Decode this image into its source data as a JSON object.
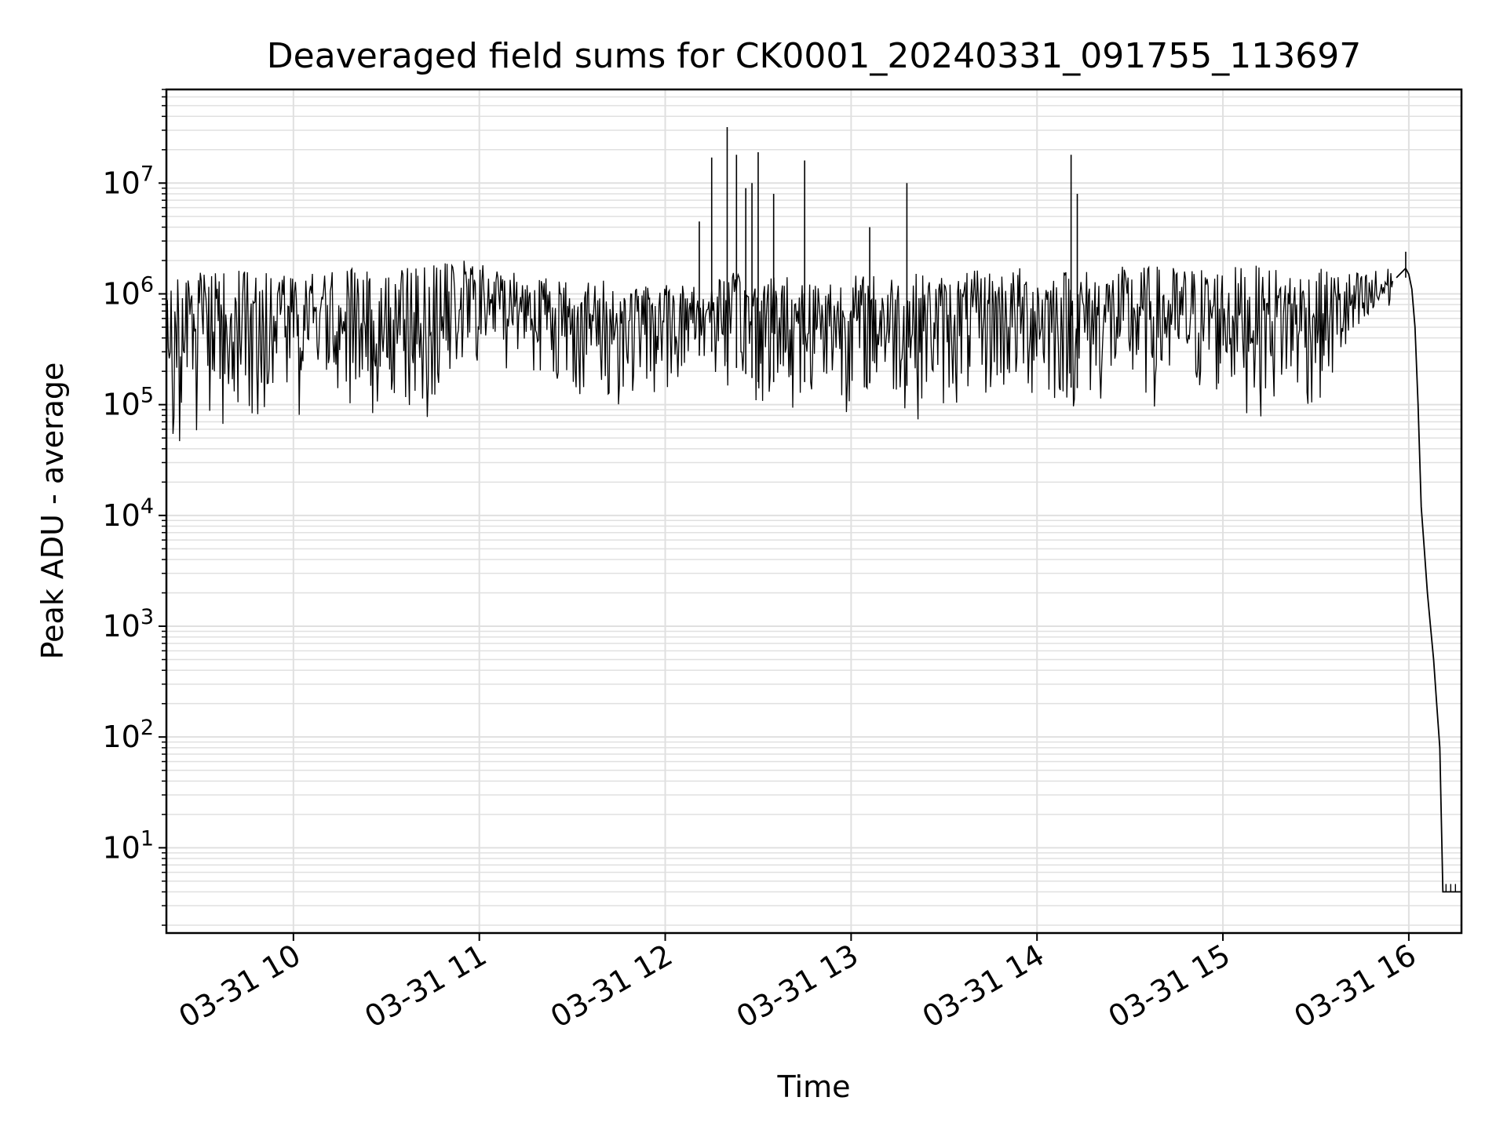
{
  "chart_data": {
    "type": "line",
    "title": "Deaveraged field sums for CK0001_20240331_091755_113697",
    "xlabel": "Time",
    "ylabel": "Peak ADU - average",
    "yscale": "log",
    "grid": true,
    "line_color": "#000000",
    "grid_color": "#e0e0e0",
    "x_range": [
      "2024-03-31T09:19:00",
      "2024-03-31T16:17:00"
    ],
    "y_range": [
      1.7,
      70000000
    ],
    "x_ticks": [
      {
        "value": "2024-03-31T10:00:00",
        "label": "03-31 10"
      },
      {
        "value": "2024-03-31T11:00:00",
        "label": "03-31 11"
      },
      {
        "value": "2024-03-31T12:00:00",
        "label": "03-31 12"
      },
      {
        "value": "2024-03-31T13:00:00",
        "label": "03-31 13"
      },
      {
        "value": "2024-03-31T14:00:00",
        "label": "03-31 14"
      },
      {
        "value": "2024-03-31T15:00:00",
        "label": "03-31 15"
      },
      {
        "value": "2024-03-31T16:00:00",
        "label": "03-31 16"
      }
    ],
    "y_ticks": [
      {
        "value": 10,
        "base": "10",
        "exp": "1"
      },
      {
        "value": 100,
        "base": "10",
        "exp": "2"
      },
      {
        "value": 1000,
        "base": "10",
        "exp": "3"
      },
      {
        "value": 10000,
        "base": "10",
        "exp": "4"
      },
      {
        "value": 100000,
        "base": "10",
        "exp": "5"
      },
      {
        "value": 1000000,
        "base": "10",
        "exp": "6"
      },
      {
        "value": 10000000,
        "base": "10",
        "exp": "7"
      }
    ],
    "series": [
      {
        "type": "envelope",
        "points": [
          {
            "x": "2024-03-31T09:19:00",
            "low": 40000,
            "high": 1500000
          },
          {
            "x": "2024-03-31T09:30:00",
            "low": 45000,
            "high": 1600000
          },
          {
            "x": "2024-03-31T09:45:00",
            "low": 50000,
            "high": 1700000
          },
          {
            "x": "2024-03-31T10:00:00",
            "low": 60000,
            "high": 1700000
          },
          {
            "x": "2024-03-31T10:15:00",
            "low": 65000,
            "high": 1700000
          },
          {
            "x": "2024-03-31T10:30:00",
            "low": 60000,
            "high": 1750000
          },
          {
            "x": "2024-03-31T10:45:00",
            "low": 65000,
            "high": 1900000
          },
          {
            "x": "2024-03-31T10:55:00",
            "low": 150000,
            "high": 2000000
          },
          {
            "x": "2024-03-31T11:15:00",
            "low": 200000,
            "high": 1600000
          },
          {
            "x": "2024-03-31T11:30:00",
            "low": 80000,
            "high": 1400000
          },
          {
            "x": "2024-03-31T11:45:00",
            "low": 70000,
            "high": 1300000
          },
          {
            "x": "2024-03-31T12:00:00",
            "low": 110000,
            "high": 1200000
          },
          {
            "x": "2024-03-31T12:15:00",
            "low": 150000,
            "high": 1500000
          },
          {
            "x": "2024-03-31T12:30:00",
            "low": 80000,
            "high": 1600000
          },
          {
            "x": "2024-03-31T12:45:00",
            "low": 80000,
            "high": 1500000
          },
          {
            "x": "2024-03-31T13:00:00",
            "low": 80000,
            "high": 1500000
          },
          {
            "x": "2024-03-31T13:15:00",
            "low": 75000,
            "high": 1600000
          },
          {
            "x": "2024-03-31T13:30:00",
            "low": 70000,
            "high": 1500000
          },
          {
            "x": "2024-03-31T13:45:00",
            "low": 80000,
            "high": 1700000
          },
          {
            "x": "2024-03-31T14:00:00",
            "low": 75000,
            "high": 1800000
          },
          {
            "x": "2024-03-31T14:15:00",
            "low": 70000,
            "high": 1700000
          },
          {
            "x": "2024-03-31T14:30:00",
            "low": 70000,
            "high": 1800000
          },
          {
            "x": "2024-03-31T14:45:00",
            "low": 70000,
            "high": 1800000
          },
          {
            "x": "2024-03-31T15:00:00",
            "low": 80000,
            "high": 1800000
          },
          {
            "x": "2024-03-31T15:15:00",
            "low": 70000,
            "high": 1800000
          },
          {
            "x": "2024-03-31T15:30:00",
            "low": 70000,
            "high": 1700000
          },
          {
            "x": "2024-03-31T15:45:00",
            "low": 200000,
            "high": 1600000
          },
          {
            "x": "2024-03-31T15:55:00",
            "low": 700000,
            "high": 1800000
          }
        ]
      },
      {
        "type": "spikes",
        "points": [
          {
            "x": "2024-03-31T12:11:00",
            "y": 4500000
          },
          {
            "x": "2024-03-31T12:15:00",
            "y": 17000000
          },
          {
            "x": "2024-03-31T12:20:00",
            "y": 32000000
          },
          {
            "x": "2024-03-31T12:23:00",
            "y": 18000000
          },
          {
            "x": "2024-03-31T12:26:00",
            "y": 9000000
          },
          {
            "x": "2024-03-31T12:28:00",
            "y": 10000000
          },
          {
            "x": "2024-03-31T12:30:00",
            "y": 19000000
          },
          {
            "x": "2024-03-31T12:35:00",
            "y": 8000000
          },
          {
            "x": "2024-03-31T12:45:00",
            "y": 16000000
          },
          {
            "x": "2024-03-31T13:06:00",
            "y": 4000000
          },
          {
            "x": "2024-03-31T13:18:00",
            "y": 10000000
          },
          {
            "x": "2024-03-31T14:11:00",
            "y": 18000000
          },
          {
            "x": "2024-03-31T14:13:00",
            "y": 8000000
          },
          {
            "x": "2024-03-31T15:59:00",
            "y": 2400000
          }
        ]
      },
      {
        "type": "line",
        "points": [
          {
            "x": "2024-03-31T15:56:00",
            "y": 1400000
          },
          {
            "x": "2024-03-31T15:59:00",
            "y": 1700000
          },
          {
            "x": "2024-03-31T16:00:00",
            "y": 1500000
          },
          {
            "x": "2024-03-31T16:01:00",
            "y": 1100000
          },
          {
            "x": "2024-03-31T16:02:00",
            "y": 500000
          },
          {
            "x": "2024-03-31T16:03:00",
            "y": 100000
          },
          {
            "x": "2024-03-31T16:04:00",
            "y": 12000
          },
          {
            "x": "2024-03-31T16:05:00",
            "y": 5000
          },
          {
            "x": "2024-03-31T16:06:00",
            "y": 2000
          },
          {
            "x": "2024-03-31T16:07:00",
            "y": 1000
          },
          {
            "x": "2024-03-31T16:08:00",
            "y": 500
          },
          {
            "x": "2024-03-31T16:09:00",
            "y": 200
          },
          {
            "x": "2024-03-31T16:10:00",
            "y": 80
          },
          {
            "x": "2024-03-31T16:11:00",
            "y": 4
          },
          {
            "x": "2024-03-31T16:17:00",
            "y": 4
          }
        ]
      }
    ]
  }
}
